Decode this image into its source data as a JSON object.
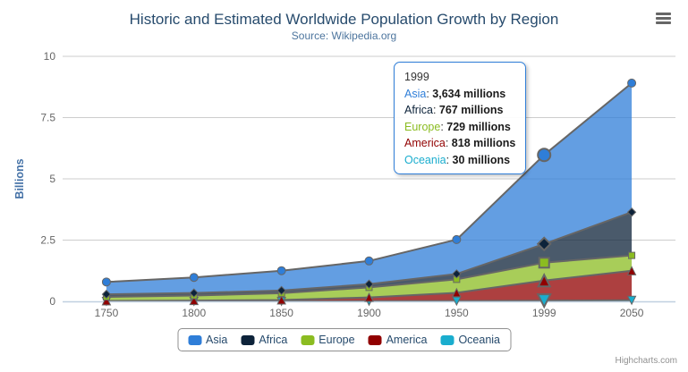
{
  "chart_data": {
    "type": "area",
    "stacking": "normal",
    "title": "Historic and Estimated Worldwide Population Growth by Region",
    "subtitle": "Source: Wikipedia.org",
    "categories": [
      "1750",
      "1800",
      "1850",
      "1900",
      "1950",
      "1999",
      "2050"
    ],
    "unit": "millions",
    "series": [
      {
        "name": "Asia",
        "color": "#2f7ed8",
        "marker": "circle",
        "data": [
          502,
          635,
          809,
          947,
          1402,
          3634,
          5268
        ]
      },
      {
        "name": "Africa",
        "color": "#0d233a",
        "marker": "diamond",
        "data": [
          106,
          107,
          111,
          133,
          221,
          767,
          1766
        ]
      },
      {
        "name": "Europe",
        "color": "#8bbc21",
        "marker": "square",
        "data": [
          163,
          203,
          276,
          408,
          547,
          729,
          628
        ]
      },
      {
        "name": "America",
        "color": "#910000",
        "marker": "triangle",
        "data": [
          18,
          31,
          54,
          156,
          339,
          818,
          1201
        ]
      },
      {
        "name": "Oceania",
        "color": "#1aadce",
        "marker": "triangle-down",
        "data": [
          2,
          2,
          2,
          6,
          13,
          30,
          46
        ]
      }
    ],
    "yAxis": {
      "title": "Billions",
      "ticks": [
        0,
        2.5,
        5,
        7.5,
        10
      ],
      "min": 0,
      "max": 10
    },
    "grid": true,
    "legend_position": "bottom",
    "fill_opacity": 0.75,
    "line_color": "#666666"
  },
  "tooltip": {
    "category": "1999",
    "rows": [
      {
        "name": "Asia",
        "value": "3,634 millions",
        "color": "#2f7ed8"
      },
      {
        "name": "Africa",
        "value": "767 millions",
        "color": "#0d233a"
      },
      {
        "name": "Europe",
        "value": "729 millions",
        "color": "#8bbc21"
      },
      {
        "name": "America",
        "value": "818 millions",
        "color": "#910000"
      },
      {
        "name": "Oceania",
        "value": "30 millions",
        "color": "#1aadce"
      }
    ]
  },
  "credits": {
    "label": "Highcharts.com"
  }
}
